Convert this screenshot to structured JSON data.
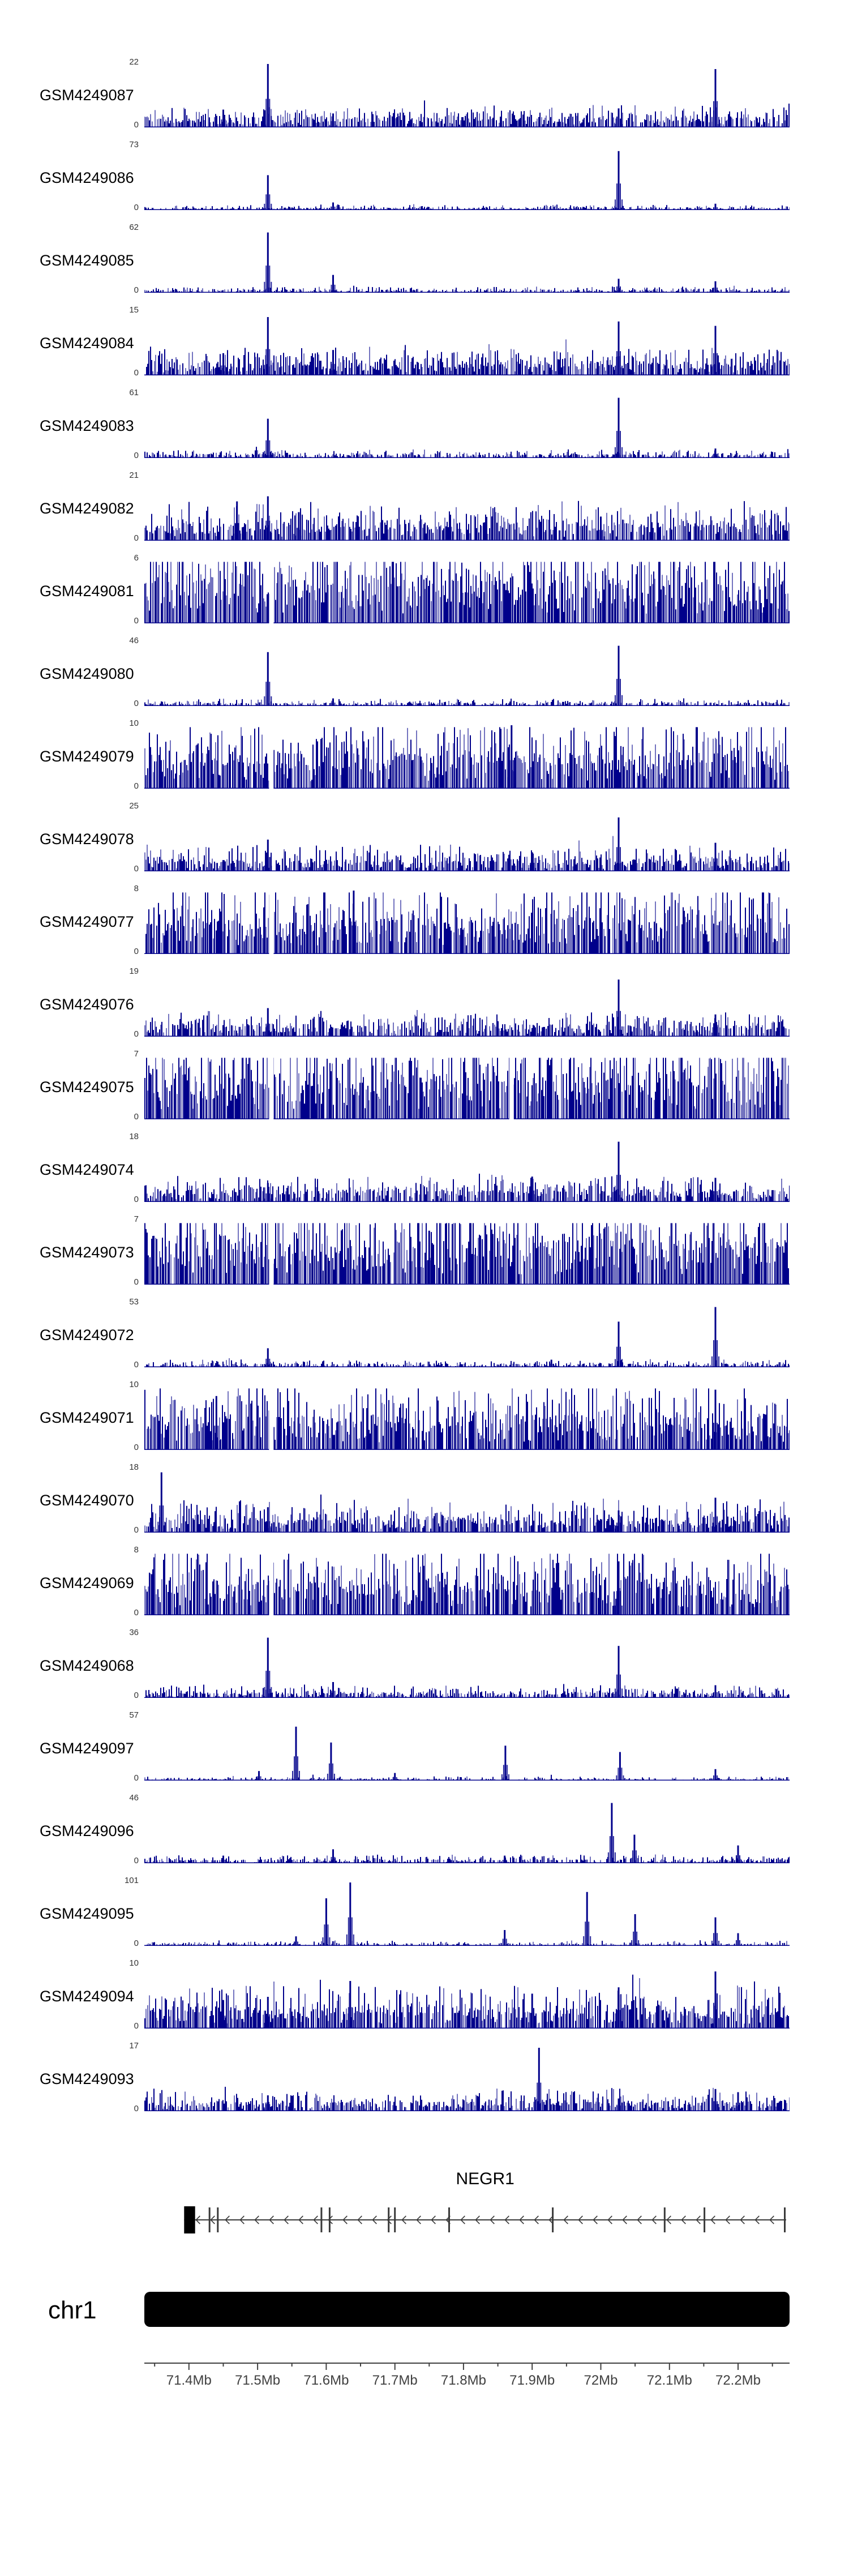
{
  "chart_data": {
    "type": "bar",
    "chart_kind": "genome-coverage-tracks",
    "region": {
      "chromosome": "chr1",
      "start_mb": 71.335,
      "end_mb": 72.275,
      "unit": "Mb"
    },
    "axis": {
      "tick_labels": [
        "71.4Mb",
        "71.5Mb",
        "71.6Mb",
        "71.7Mb",
        "71.8Mb",
        "71.9Mb",
        "72Mb",
        "72.1Mb",
        "72.2Mb"
      ],
      "tick_positions_mb": [
        71.4,
        71.5,
        71.6,
        71.7,
        71.8,
        71.9,
        72.0,
        72.1,
        72.2
      ],
      "minor_tick_step_mb": 0.05,
      "color": "#404040"
    },
    "signal_color": "#00008B",
    "gene_color": "#3a3a3a",
    "y_zero_label": "0",
    "tracks": [
      {
        "name": "GSM4249087",
        "ymax": 22,
        "ymax_label": "22",
        "seed": 101,
        "density": 0.88,
        "base": 0.1,
        "spread": 0.1,
        "notches": [],
        "peaks": [
          [
            71.515,
            1.0
          ],
          [
            72.167,
            0.92
          ],
          [
            72.026,
            0.3
          ],
          [
            71.45,
            0.28
          ],
          [
            71.61,
            0.22
          ]
        ]
      },
      {
        "name": "GSM4249086",
        "ymax": 73,
        "ymax_label": "73",
        "seed": 102,
        "density": 0.72,
        "base": 0.022,
        "spread": 0.025,
        "notches": [],
        "peaks": [
          [
            71.515,
            0.55
          ],
          [
            72.026,
            0.93
          ],
          [
            71.61,
            0.12
          ],
          [
            72.167,
            0.1
          ]
        ]
      },
      {
        "name": "GSM4249085",
        "ymax": 62,
        "ymax_label": "62",
        "seed": 103,
        "density": 0.72,
        "base": 0.028,
        "spread": 0.03,
        "notches": [],
        "peaks": [
          [
            71.515,
            0.95
          ],
          [
            71.61,
            0.28
          ],
          [
            72.026,
            0.22
          ],
          [
            72.167,
            0.18
          ]
        ]
      },
      {
        "name": "GSM4249084",
        "ymax": 15,
        "ymax_label": "15",
        "seed": 104,
        "density": 0.9,
        "base": 0.13,
        "spread": 0.13,
        "notches": [],
        "peaks": [
          [
            71.515,
            0.92
          ],
          [
            72.026,
            0.85
          ],
          [
            72.167,
            0.78
          ],
          [
            71.61,
            0.4
          ],
          [
            71.45,
            0.35
          ]
        ]
      },
      {
        "name": "GSM4249083",
        "ymax": 61,
        "ymax_label": "61",
        "seed": 105,
        "density": 0.75,
        "base": 0.035,
        "spread": 0.04,
        "notches": [],
        "peaks": [
          [
            71.515,
            0.62
          ],
          [
            72.026,
            0.95
          ],
          [
            72.167,
            0.15
          ]
        ]
      },
      {
        "name": "GSM4249082",
        "ymax": 21,
        "ymax_label": "21",
        "seed": 106,
        "density": 0.9,
        "base": 0.17,
        "spread": 0.17,
        "notches": [],
        "peaks": [
          [
            71.47,
            0.62
          ],
          [
            71.515,
            0.7
          ],
          [
            71.56,
            0.45
          ],
          [
            72.0,
            0.38
          ]
        ]
      },
      {
        "name": "GSM4249081",
        "ymax": 6,
        "ymax_label": "6",
        "seed": 107,
        "density": 0.97,
        "base": 0.42,
        "spread": 0.38,
        "notches": [
          71.52
        ],
        "peaks": []
      },
      {
        "name": "GSM4249080",
        "ymax": 46,
        "ymax_label": "46",
        "seed": 108,
        "density": 0.72,
        "base": 0.03,
        "spread": 0.035,
        "notches": [],
        "peaks": [
          [
            71.515,
            0.85
          ],
          [
            72.026,
            0.95
          ],
          [
            71.61,
            0.12
          ]
        ]
      },
      {
        "name": "GSM4249079",
        "ymax": 10,
        "ymax_label": "10",
        "seed": 109,
        "density": 0.95,
        "base": 0.34,
        "spread": 0.32,
        "notches": [
          71.52
        ],
        "peaks": [
          [
            71.87,
            1.0
          ]
        ]
      },
      {
        "name": "GSM4249078",
        "ymax": 25,
        "ymax_label": "25",
        "seed": 110,
        "density": 0.9,
        "base": 0.11,
        "spread": 0.12,
        "notches": [],
        "peaks": [
          [
            72.026,
            0.85
          ],
          [
            71.515,
            0.5
          ],
          [
            72.167,
            0.45
          ],
          [
            71.9,
            0.3
          ]
        ]
      },
      {
        "name": "GSM4249077",
        "ymax": 8,
        "ymax_label": "8",
        "seed": 111,
        "density": 0.95,
        "base": 0.34,
        "spread": 0.33,
        "notches": [
          71.52
        ],
        "peaks": [
          [
            71.64,
            1.0
          ]
        ]
      },
      {
        "name": "GSM4249076",
        "ymax": 19,
        "ymax_label": "19",
        "seed": 112,
        "density": 0.9,
        "base": 0.11,
        "spread": 0.12,
        "notches": [],
        "peaks": [
          [
            72.026,
            0.9
          ],
          [
            71.515,
            0.45
          ],
          [
            72.167,
            0.35
          ]
        ]
      },
      {
        "name": "GSM4249075",
        "ymax": 7,
        "ymax_label": "7",
        "seed": 113,
        "density": 0.97,
        "base": 0.44,
        "spread": 0.4,
        "notches": [
          71.52,
          71.87
        ],
        "peaks": []
      },
      {
        "name": "GSM4249074",
        "ymax": 18,
        "ymax_label": "18",
        "seed": 114,
        "density": 0.9,
        "base": 0.12,
        "spread": 0.13,
        "notches": [],
        "peaks": [
          [
            72.026,
            0.95
          ],
          [
            71.9,
            0.4
          ],
          [
            72.167,
            0.38
          ],
          [
            71.515,
            0.3
          ]
        ]
      },
      {
        "name": "GSM4249073",
        "ymax": 7,
        "ymax_label": "7",
        "seed": 115,
        "density": 0.97,
        "base": 0.44,
        "spread": 0.4,
        "notches": [
          71.52
        ],
        "peaks": [
          [
            71.75,
            0.85
          ]
        ]
      },
      {
        "name": "GSM4249072",
        "ymax": 53,
        "ymax_label": "53",
        "seed": 116,
        "density": 0.75,
        "base": 0.03,
        "spread": 0.035,
        "notches": [],
        "peaks": [
          [
            72.167,
            0.95
          ],
          [
            72.026,
            0.72
          ],
          [
            71.515,
            0.3
          ],
          [
            71.928,
            0.12
          ]
        ]
      },
      {
        "name": "GSM4249071",
        "ymax": 10,
        "ymax_label": "10",
        "seed": 117,
        "density": 0.95,
        "base": 0.32,
        "spread": 0.32,
        "notches": [
          71.52
        ],
        "peaks": [
          [
            72.167,
            0.95
          ],
          [
            71.44,
            0.85
          ]
        ]
      },
      {
        "name": "GSM4249070",
        "ymax": 18,
        "ymax_label": "18",
        "seed": 118,
        "density": 0.92,
        "base": 0.14,
        "spread": 0.15,
        "notches": [],
        "peaks": [
          [
            71.36,
            0.95
          ],
          [
            72.167,
            0.55
          ],
          [
            71.515,
            0.4
          ],
          [
            72.026,
            0.35
          ]
        ]
      },
      {
        "name": "GSM4249069",
        "ymax": 8,
        "ymax_label": "8",
        "seed": 119,
        "density": 0.95,
        "base": 0.34,
        "spread": 0.33,
        "notches": [
          71.52
        ],
        "peaks": [
          [
            72.026,
            0.85
          ]
        ]
      },
      {
        "name": "GSM4249068",
        "ymax": 36,
        "ymax_label": "36",
        "seed": 120,
        "density": 0.82,
        "base": 0.05,
        "spread": 0.06,
        "notches": [],
        "peaks": [
          [
            71.515,
            0.95
          ],
          [
            72.026,
            0.82
          ],
          [
            71.61,
            0.25
          ],
          [
            72.167,
            0.2
          ]
        ]
      },
      {
        "name": "GSM4249097",
        "ymax": 57,
        "ymax_label": "57",
        "seed": 121,
        "density": 0.55,
        "base": 0.018,
        "spread": 0.02,
        "notches": [],
        "peaks": [
          [
            71.556,
            0.85
          ],
          [
            71.607,
            0.6
          ],
          [
            71.861,
            0.55
          ],
          [
            72.028,
            0.45
          ],
          [
            71.502,
            0.15
          ],
          [
            72.167,
            0.18
          ],
          [
            71.7,
            0.12
          ]
        ]
      },
      {
        "name": "GSM4249096",
        "ymax": 46,
        "ymax_label": "46",
        "seed": 122,
        "density": 0.75,
        "base": 0.035,
        "spread": 0.04,
        "notches": [],
        "peaks": [
          [
            72.016,
            0.95
          ],
          [
            72.049,
            0.45
          ],
          [
            71.61,
            0.22
          ],
          [
            72.2,
            0.28
          ],
          [
            71.45,
            0.12
          ],
          [
            71.86,
            0.12
          ]
        ]
      },
      {
        "name": "GSM4249095",
        "ymax": 101,
        "ymax_label": "101",
        "seed": 123,
        "density": 0.6,
        "base": 0.022,
        "spread": 0.025,
        "notches": [],
        "peaks": [
          [
            71.635,
            1.0
          ],
          [
            71.6,
            0.75
          ],
          [
            71.98,
            0.85
          ],
          [
            72.05,
            0.5
          ],
          [
            72.167,
            0.45
          ],
          [
            71.86,
            0.25
          ],
          [
            72.2,
            0.2
          ],
          [
            71.556,
            0.15
          ]
        ]
      },
      {
        "name": "GSM4249094",
        "ymax": 10,
        "ymax_label": "10",
        "seed": 124,
        "density": 0.95,
        "base": 0.2,
        "spread": 0.22,
        "notches": [],
        "peaks": [
          [
            72.167,
            0.9
          ],
          [
            71.635,
            0.75
          ],
          [
            72.026,
            0.65
          ],
          [
            71.9,
            0.55
          ],
          [
            71.515,
            0.5
          ],
          [
            71.45,
            0.45
          ]
        ]
      },
      {
        "name": "GSM4249093",
        "ymax": 17,
        "ymax_label": "17",
        "seed": 125,
        "density": 0.9,
        "base": 0.09,
        "spread": 0.1,
        "notches": [],
        "peaks": [
          [
            71.91,
            1.0
          ],
          [
            72.167,
            0.35
          ],
          [
            72.2,
            0.3
          ],
          [
            71.515,
            0.25
          ],
          [
            72.026,
            0.2
          ]
        ]
      }
    ],
    "gene": {
      "name": "NEGR1",
      "strand": "-",
      "start_mb": 71.393,
      "end_mb": 72.27,
      "first_exon_mb": [
        71.393,
        71.409
      ],
      "exon_ticks_mb": [
        71.43,
        71.442,
        71.593,
        71.605,
        71.691,
        71.7,
        71.779,
        71.93,
        72.093,
        72.151,
        72.268
      ]
    },
    "ideogram": {
      "label": "chr1",
      "color": "#000000"
    }
  }
}
